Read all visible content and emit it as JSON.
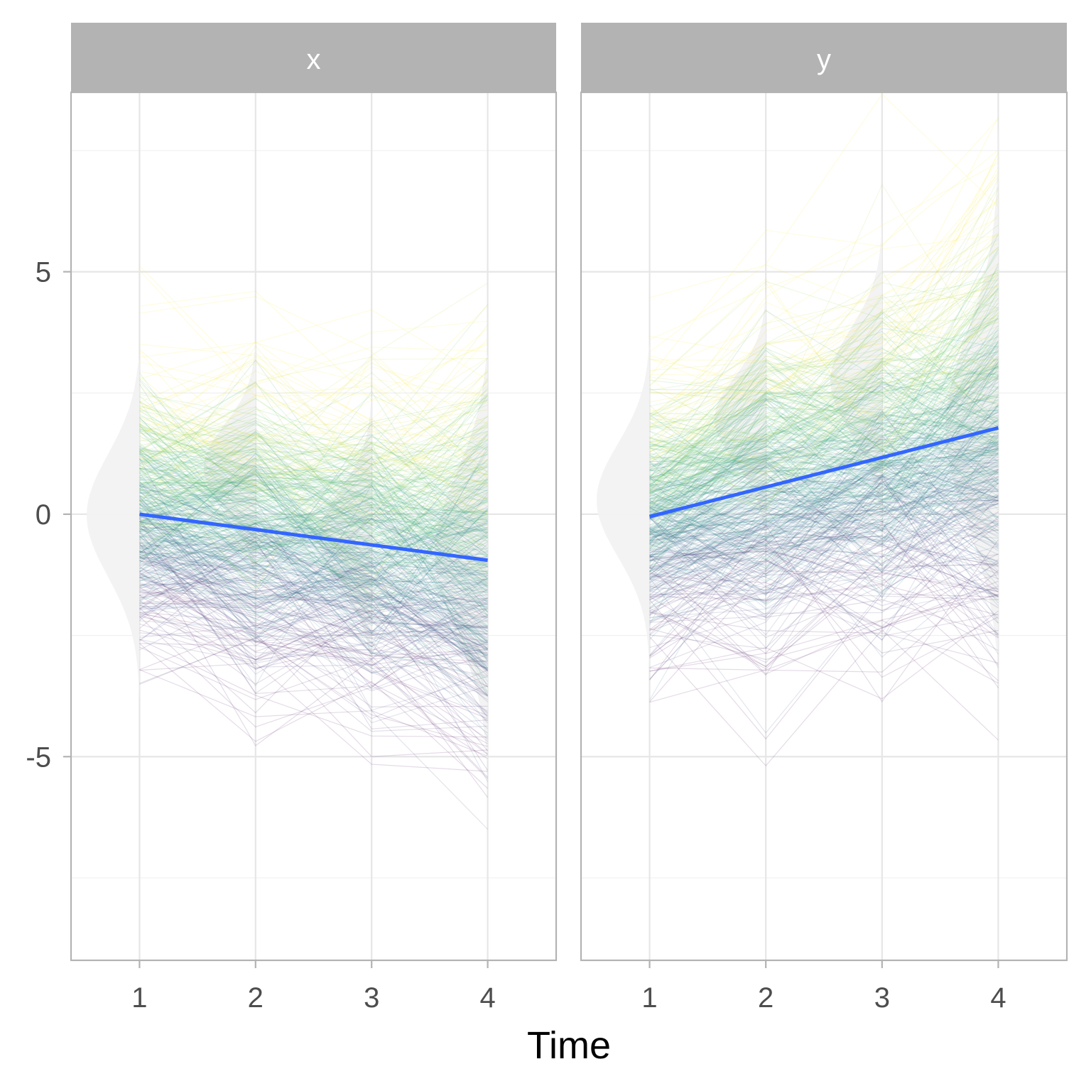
{
  "chart_data": {
    "type": "line",
    "xlabel": "Time",
    "ylabel": "",
    "x_ticks": [
      1,
      2,
      3,
      4
    ],
    "y_ticks": [
      -5,
      0,
      5
    ],
    "y_tick_labels": [
      "-5",
      "0",
      "5"
    ],
    "ylim": [
      -9.2,
      8.7
    ],
    "xlim": [
      0.41,
      4.59
    ],
    "grid": true,
    "colors": {
      "panel_border": "#b3b3b3",
      "strip_fill": "#b3b3b3",
      "grid_major": "#e6e6e6",
      "grid_minor": "#f0f0f0",
      "violin": "#f2f2f2",
      "trend": "#3366ff",
      "viridis": [
        "#440154",
        "#3b528b",
        "#21908c",
        "#5dc863",
        "#fde725"
      ]
    },
    "panels": [
      {
        "strip": "x",
        "trend": {
          "x": [
            1,
            4
          ],
          "y": [
            0.0,
            -0.95
          ]
        },
        "individual_lines": {
          "count": 500,
          "mean": [
            0.0,
            -0.35,
            -0.65,
            -1.0
          ],
          "sd": [
            1.4,
            1.5,
            1.6,
            2.0
          ]
        },
        "violins": [
          {
            "x": 1,
            "ymin": -3.8,
            "ymax": 3.2,
            "mode": 0.0,
            "sd": 1.3
          },
          {
            "x": 2,
            "ymin": -3.5,
            "ymax": 3.6,
            "mode": 1.0,
            "sd": 0.9
          },
          {
            "x": 3,
            "ymin": -3.9,
            "ymax": 3.2,
            "mode": -0.5,
            "sd": 1.0
          },
          {
            "x": 4,
            "ymin": -5.1,
            "ymax": 3.3,
            "mode": -0.8,
            "sd": 1.7
          }
        ]
      },
      {
        "strip": "y",
        "trend": {
          "x": [
            1,
            4
          ],
          "y": [
            -0.05,
            1.78
          ]
        },
        "individual_lines": {
          "count": 500,
          "mean": [
            -0.05,
            0.6,
            1.2,
            1.78
          ],
          "sd": [
            1.4,
            1.6,
            1.8,
            2.2
          ]
        },
        "violins": [
          {
            "x": 1,
            "ymin": -3.2,
            "ymax": 3.5,
            "mode": 0.3,
            "sd": 1.2
          },
          {
            "x": 2,
            "ymin": -2.9,
            "ymax": 4.6,
            "mode": 2.0,
            "sd": 0.9
          },
          {
            "x": 3,
            "ymin": -3.2,
            "ymax": 6.1,
            "mode": 2.8,
            "sd": 1.1
          },
          {
            "x": 4,
            "ymin": -2.9,
            "ymax": 8.0,
            "mode": 1.7,
            "sd": 2.0
          }
        ]
      }
    ]
  }
}
